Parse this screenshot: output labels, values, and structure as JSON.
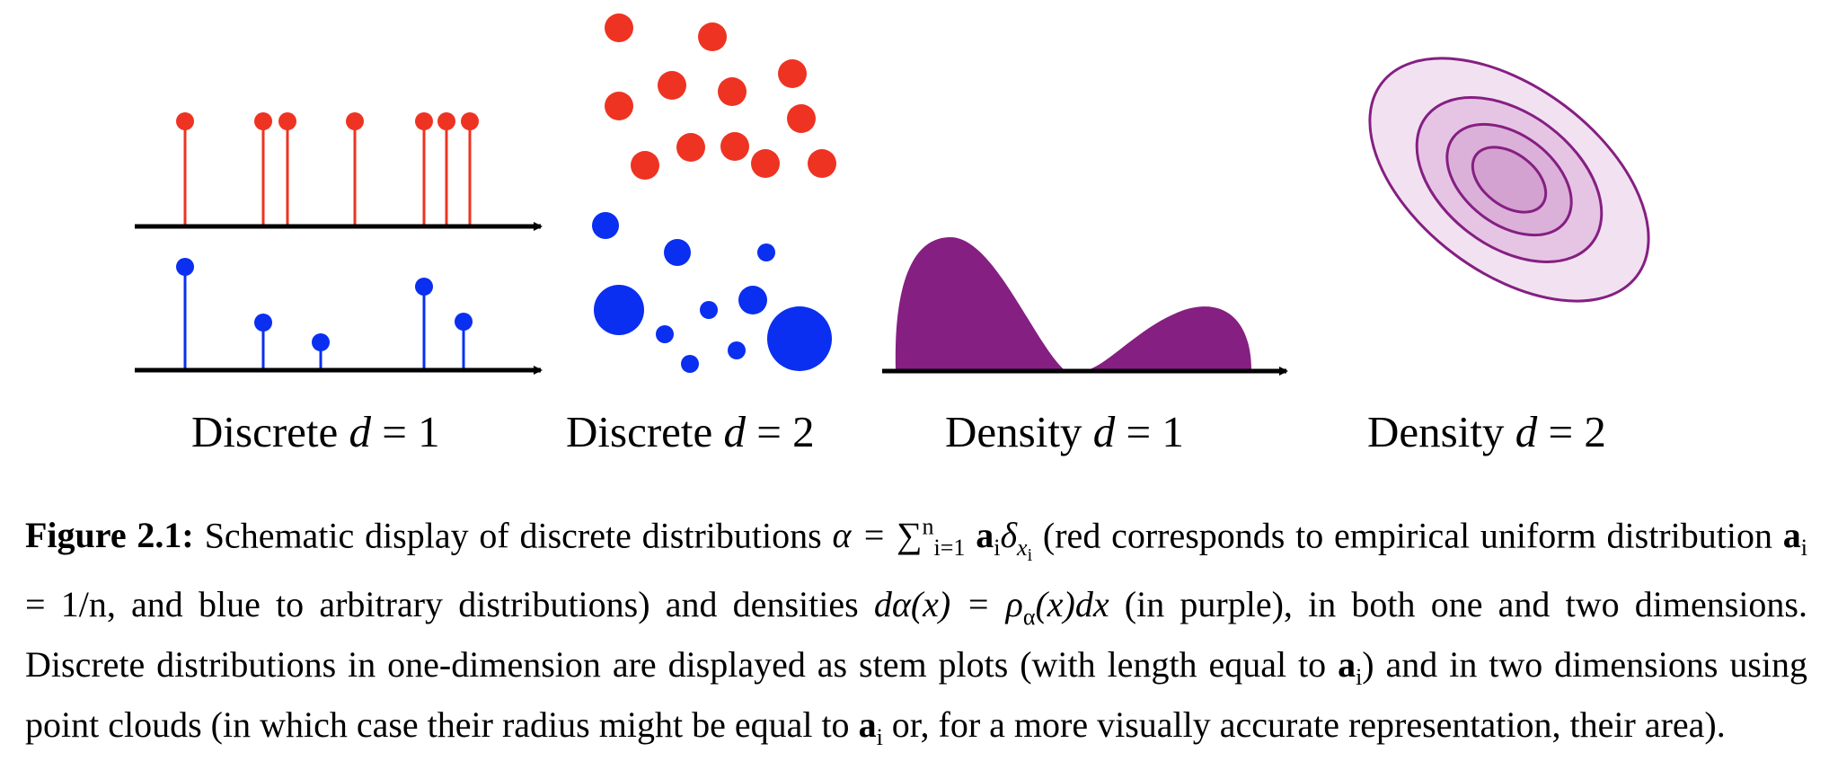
{
  "figure": {
    "panels": [
      {
        "id": "discrete-1d",
        "word": "Discrete",
        "var": "d",
        "eq": " = 1"
      },
      {
        "id": "discrete-2d",
        "word": "Discrete",
        "var": "d",
        "eq": " = 2"
      },
      {
        "id": "density-1d",
        "word": "Density",
        "var": "d",
        "eq": " = 1"
      },
      {
        "id": "density-2d",
        "word": "Density",
        "var": "d",
        "eq": " = 2"
      }
    ],
    "colors": {
      "uniform": "#ee3322",
      "arbitrary": "#0a2ff0",
      "density": "#851f82",
      "density_fill_light": "#f2e2f1",
      "axis": "#000000"
    }
  },
  "caption": {
    "label": "Figure 2.1:",
    "part1": "Schematic display of discrete distributions ",
    "formula_sum": "α = ∑",
    "formula_sum_sub": "i=1",
    "formula_sum_sup": "n",
    "formula_sum_term": " a",
    "formula_sum_term_sub": "i",
    "formula_sum_delta": "δ",
    "formula_sum_delta_sub": "x",
    "formula_sum_delta_subsub": "i",
    "part2": " (red corresponds to empirical uniform distribution ",
    "ai_eq": "a",
    "ai_eq_sub": "i",
    "ai_eq_rest": " = 1/n",
    "part3": ", and blue to arbitrary distributions) and densities ",
    "density_formula": "dα(x) = ρ",
    "density_formula_sub": "α",
    "density_formula_rest": "(x)dx",
    "part4": " (in purple), in both one and two dimensions. Discrete distributions in one-dimension are displayed as stem plots (with length equal to ",
    "stem_a": "a",
    "stem_a_sub": "i",
    "part5": ") and in two dimensions using point clouds (in which case their radius might be equal to ",
    "radius_a": "a",
    "radius_a_sub": "i",
    "part6": " or, for a more visually accurate representation, their area)."
  }
}
